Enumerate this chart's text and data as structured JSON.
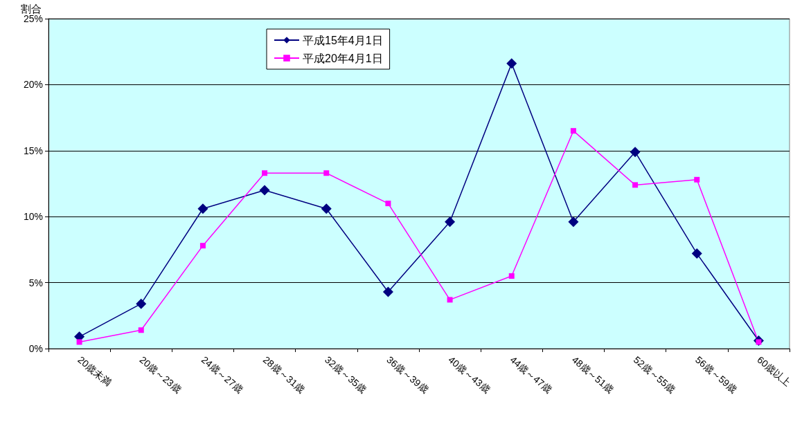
{
  "chart_data": {
    "type": "line",
    "ylabel": "割合",
    "categories": [
      "20歳未満",
      "20歳～23歳",
      "24歳～27歳",
      "28歳～31歳",
      "32歳～35歳",
      "36歳～39歳",
      "40歳～43歳",
      "44歳～47歳",
      "48歳～51歳",
      "52歳～55歳",
      "56歳～59歳",
      "60歳以上"
    ],
    "series": [
      {
        "name": "平成15年4月1日",
        "color": "#000080",
        "marker": "diamond",
        "values": [
          0.9,
          3.4,
          10.6,
          12.0,
          10.6,
          4.3,
          9.6,
          21.6,
          9.6,
          14.9,
          7.2,
          0.6
        ]
      },
      {
        "name": "平成20年4月1日",
        "color": "#ff00ff",
        "marker": "square",
        "values": [
          0.5,
          1.4,
          7.8,
          13.3,
          13.3,
          11.0,
          3.7,
          5.5,
          16.5,
          12.4,
          12.8,
          0.5
        ]
      }
    ],
    "ylim": [
      0,
      25
    ],
    "yticks": [
      {
        "value": 0,
        "label": "0%"
      },
      {
        "value": 5,
        "label": "5%"
      },
      {
        "value": 10,
        "label": "10%"
      },
      {
        "value": 15,
        "label": "15%"
      },
      {
        "value": 20,
        "label": "20%"
      },
      {
        "value": 25,
        "label": "25%"
      }
    ],
    "grid": "y",
    "legend": "top"
  }
}
